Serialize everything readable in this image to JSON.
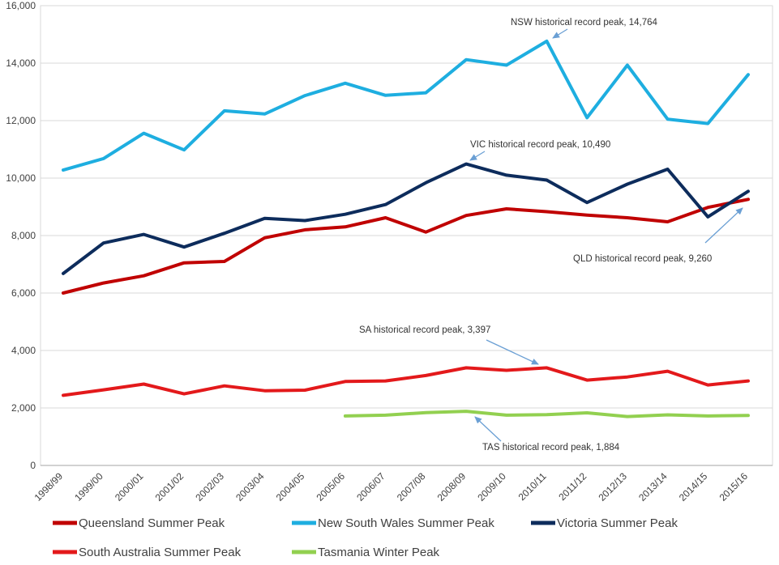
{
  "chart_data": {
    "type": "line",
    "title": "",
    "xlabel": "",
    "ylabel": "",
    "ylim": [
      0,
      16000
    ],
    "yticks": [
      0,
      2000,
      4000,
      6000,
      8000,
      10000,
      12000,
      14000,
      16000
    ],
    "ytick_labels": [
      "0",
      "2,000",
      "4,000",
      "6,000",
      "8,000",
      "10,000",
      "12,000",
      "14,000",
      "16,000"
    ],
    "grid": "horizontal",
    "legend_position": "bottom",
    "categories": [
      "1998/99",
      "1999/00",
      "2000/01",
      "2001/02",
      "2002/03",
      "2003/04",
      "2004/05",
      "2005/06",
      "2006/07",
      "2007/08",
      "2008/09",
      "2009/10",
      "2010/11",
      "2011/12",
      "2012/13",
      "2013/14",
      "2014/15",
      "2015/16"
    ],
    "series": [
      {
        "name": "Queensland Summer Peak",
        "key": "qld",
        "color": "#C00000",
        "values": [
          6000,
          6350,
          6600,
          7050,
          7100,
          7920,
          8200,
          8300,
          8620,
          8120,
          8700,
          8930,
          8830,
          8710,
          8620,
          8480,
          8980,
          9260
        ]
      },
      {
        "name": "New South Wales Summer Peak",
        "key": "nsw",
        "color": "#1EAEE0",
        "values": [
          10280,
          10680,
          11560,
          10980,
          12340,
          12230,
          12870,
          13300,
          12880,
          12970,
          14120,
          13930,
          14764,
          12100,
          13930,
          12050,
          11900,
          13600
        ]
      },
      {
        "name": "Victoria Summer Peak",
        "key": "vic",
        "color": "#0D2C5C",
        "values": [
          6680,
          7740,
          8040,
          7600,
          8080,
          8600,
          8520,
          8740,
          9080,
          9840,
          10490,
          10100,
          9930,
          9150,
          9790,
          10310,
          8650,
          9540
        ]
      },
      {
        "name": "South Australia Summer Peak",
        "key": "sa",
        "color": "#E3191B",
        "values": [
          2440,
          2630,
          2830,
          2490,
          2770,
          2600,
          2620,
          2920,
          2940,
          3130,
          3397,
          3310,
          3397,
          2970,
          3080,
          3280,
          2800,
          2940
        ]
      },
      {
        "name": "Tasmania Winter Peak",
        "key": "tas",
        "color": "#92D050",
        "values": [
          null,
          null,
          null,
          null,
          null,
          null,
          null,
          1720,
          1750,
          1840,
          1884,
          1750,
          1770,
          1830,
          1700,
          1760,
          1720,
          1740
        ]
      }
    ],
    "annotations": [
      {
        "text": "NSW historical record peak, 14,764",
        "x": "2010/11",
        "y": 14764
      },
      {
        "text": "VIC historical record peak, 10,490",
        "x": "2008/09",
        "y": 10490
      },
      {
        "text": "QLD historical record peak, 9,260",
        "x": "2015/16",
        "y": 9260
      },
      {
        "text": "SA historical record peak, 3,397",
        "x": "2010/11",
        "y": 3397
      },
      {
        "text": "TAS historical record peak, 1,884",
        "x": "2008/09",
        "y": 1884
      }
    ],
    "arrow_color": "#6A9FD4"
  }
}
